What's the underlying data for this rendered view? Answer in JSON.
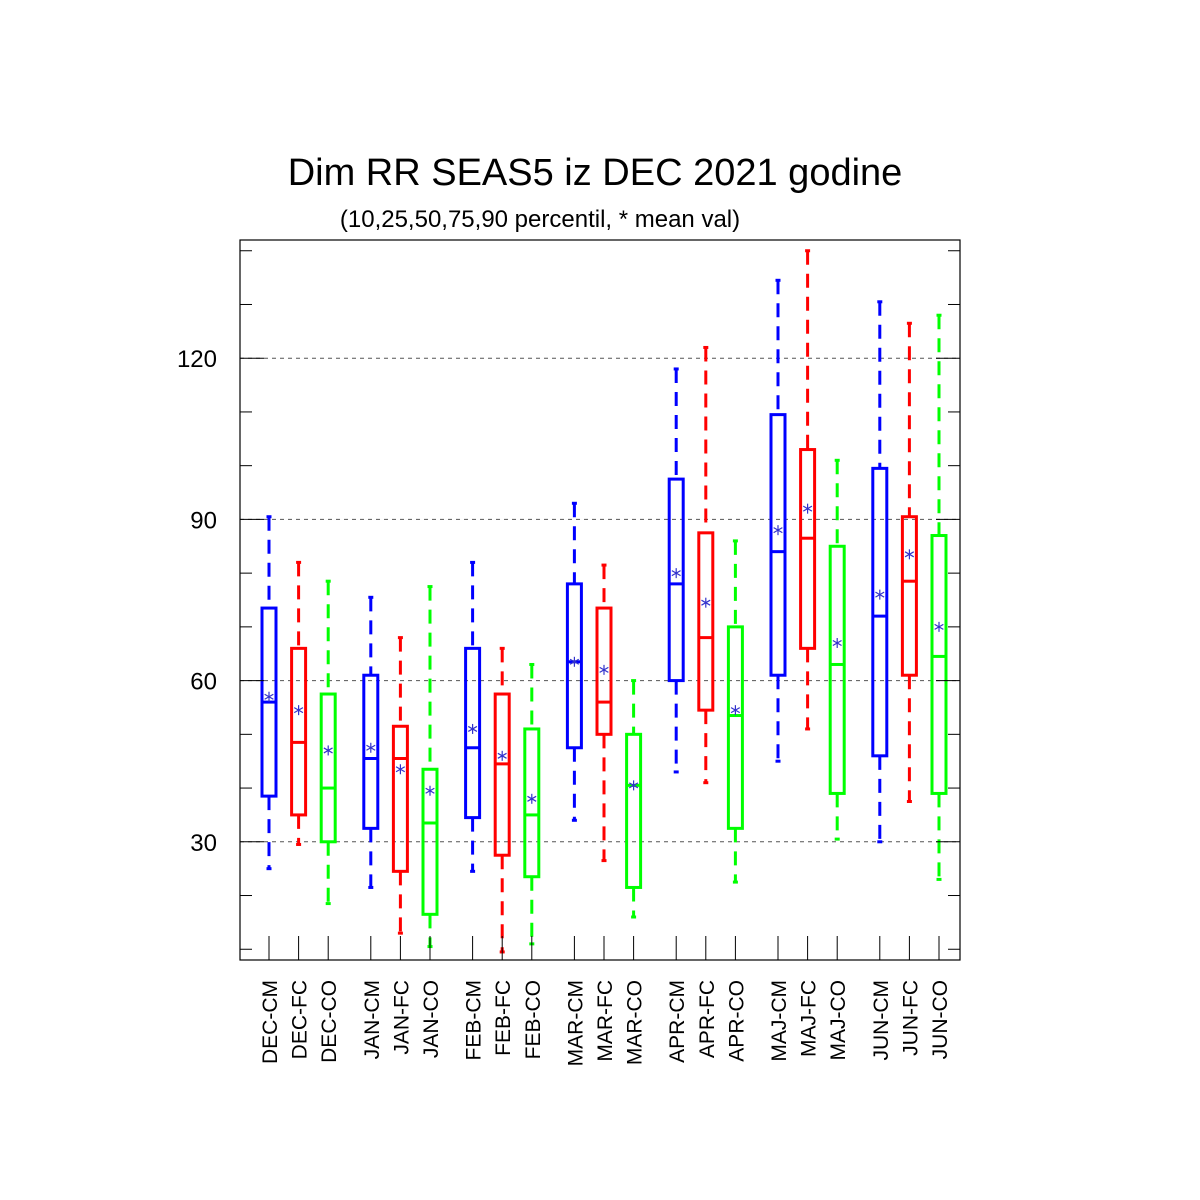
{
  "chart_data": {
    "type": "boxplot",
    "title": "Dim RR SEAS5 iz DEC 2021 godine",
    "subtitle": "(10,25,50,75,90 percentil, * mean val)",
    "ylim": [
      8,
      142
    ],
    "yticks": [
      30,
      60,
      90,
      120
    ],
    "grid": "horizontal dashed at major y ticks",
    "colors": {
      "CM": "#0000ff",
      "FC": "#ff0000",
      "CO": "#00ff00",
      "mean_marker": "#3333cc"
    },
    "series": [
      {
        "label": "DEC-CM",
        "kind": "CM",
        "p10": 25,
        "p25": 38.5,
        "p50": 56,
        "p75": 73.5,
        "p90": 90.5,
        "mean": 57
      },
      {
        "label": "DEC-FC",
        "kind": "FC",
        "p10": 29.5,
        "p25": 35,
        "p50": 48.5,
        "p75": 66,
        "p90": 82,
        "mean": 54.5
      },
      {
        "label": "DEC-CO",
        "kind": "CO",
        "p10": 18.5,
        "p25": 30,
        "p50": 40,
        "p75": 57.5,
        "p90": 78.5,
        "mean": 47
      },
      {
        "label": "JAN-CM",
        "kind": "CM",
        "p10": 21.5,
        "p25": 32.5,
        "p50": 45.5,
        "p75": 61,
        "p90": 75.5,
        "mean": 47.5
      },
      {
        "label": "JAN-FC",
        "kind": "FC",
        "p10": 13,
        "p25": 24.5,
        "p50": 45.5,
        "p75": 51.5,
        "p90": 68,
        "mean": 43.5
      },
      {
        "label": "JAN-CO",
        "kind": "CO",
        "p10": 10.5,
        "p25": 16.5,
        "p50": 33.5,
        "p75": 43.5,
        "p90": 77.5,
        "mean": 39.5
      },
      {
        "label": "FEB-CM",
        "kind": "CM",
        "p10": 24.5,
        "p25": 34.5,
        "p50": 47.5,
        "p75": 66,
        "p90": 82,
        "mean": 51
      },
      {
        "label": "FEB-FC",
        "kind": "FC",
        "p10": 9.5,
        "p25": 27.5,
        "p50": 44.5,
        "p75": 57.5,
        "p90": 66,
        "mean": 46
      },
      {
        "label": "FEB-CO",
        "kind": "CO",
        "p10": 11,
        "p25": 23.5,
        "p50": 35,
        "p75": 51,
        "p90": 63,
        "mean": 38
      },
      {
        "label": "MAR-CM",
        "kind": "CM",
        "p10": 34,
        "p25": 47.5,
        "p50": 63.5,
        "p75": 78,
        "p90": 93,
        "mean": 63.5
      },
      {
        "label": "MAR-FC",
        "kind": "FC",
        "p10": 26.5,
        "p25": 50,
        "p50": 56,
        "p75": 73.5,
        "p90": 81.5,
        "mean": 62
      },
      {
        "label": "MAR-CO",
        "kind": "CO",
        "p10": 16,
        "p25": 21.5,
        "p50": 40.5,
        "p75": 50,
        "p90": 60,
        "mean": 40.5
      },
      {
        "label": "APR-CM",
        "kind": "CM",
        "p10": 43,
        "p25": 60,
        "p50": 78,
        "p75": 97.5,
        "p90": 118,
        "mean": 80
      },
      {
        "label": "APR-FC",
        "kind": "FC",
        "p10": 41,
        "p25": 54.5,
        "p50": 68,
        "p75": 87.5,
        "p90": 122,
        "mean": 74.5
      },
      {
        "label": "APR-CO",
        "kind": "CO",
        "p10": 22.5,
        "p25": 32.5,
        "p50": 53.5,
        "p75": 70,
        "p90": 86,
        "mean": 54.5
      },
      {
        "label": "MAJ-CM",
        "kind": "CM",
        "p10": 45,
        "p25": 61,
        "p50": 84,
        "p75": 109.5,
        "p90": 134.5,
        "mean": 88
      },
      {
        "label": "MAJ-FC",
        "kind": "FC",
        "p10": 51,
        "p25": 66,
        "p50": 86.5,
        "p75": 103,
        "p90": 140,
        "mean": 92
      },
      {
        "label": "MAJ-CO",
        "kind": "CO",
        "p10": 30.5,
        "p25": 39,
        "p50": 63,
        "p75": 85,
        "p90": 101,
        "mean": 67
      },
      {
        "label": "JUN-CM",
        "kind": "CM",
        "p10": 30,
        "p25": 46,
        "p50": 72,
        "p75": 99.5,
        "p90": 130.5,
        "mean": 76
      },
      {
        "label": "JUN-FC",
        "kind": "FC",
        "p10": 37.5,
        "p25": 61,
        "p50": 78.5,
        "p75": 90.5,
        "p90": 126.5,
        "mean": 83.5
      },
      {
        "label": "JUN-CO",
        "kind": "CO",
        "p10": 23,
        "p25": 39,
        "p50": 64.5,
        "p75": 87,
        "p90": 128,
        "mean": 70
      }
    ]
  }
}
